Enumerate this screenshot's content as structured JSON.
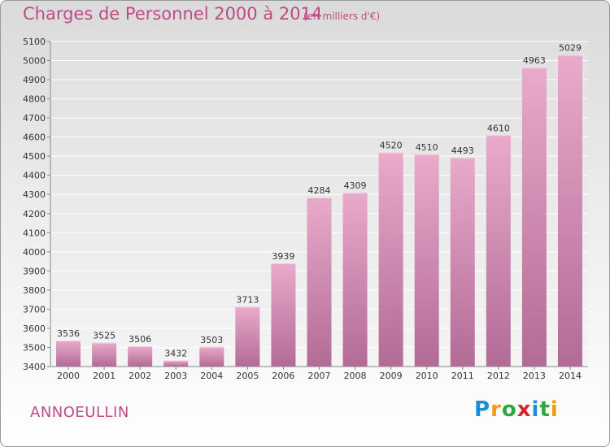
{
  "title": "Charges de Personnel 2000 à 2014",
  "subtitle": "(en milliers d'€)",
  "city": "ANNOEULLIN",
  "logo": {
    "text": "Proxiti",
    "letters": [
      "P",
      "r",
      "o",
      "x",
      "i",
      "t",
      "i"
    ],
    "colors": [
      "#1a8fd6",
      "#f39c12",
      "#2eaa3c",
      "#d8242a",
      "#1a8fd6",
      "#2eaa3c",
      "#f39c12"
    ]
  },
  "colors": {
    "title": "#c04a86",
    "bar_light": "#e8aacb",
    "bar_dark": "#b56e98"
  },
  "chart_data": {
    "type": "bar",
    "categories": [
      "2000",
      "2001",
      "2002",
      "2003",
      "2004",
      "2005",
      "2006",
      "2007",
      "2008",
      "2009",
      "2010",
      "2011",
      "2012",
      "2013",
      "2014"
    ],
    "values": [
      3536,
      3525,
      3506,
      3432,
      3503,
      3713,
      3939,
      4284,
      4309,
      4520,
      4510,
      4493,
      4610,
      4963,
      5029
    ],
    "ylim": [
      3400,
      5100
    ],
    "yticks": [
      3400,
      3500,
      3600,
      3700,
      3800,
      3900,
      4000,
      4100,
      4200,
      4300,
      4400,
      4500,
      4600,
      4700,
      4800,
      4900,
      5000,
      5100
    ],
    "grid": true
  }
}
